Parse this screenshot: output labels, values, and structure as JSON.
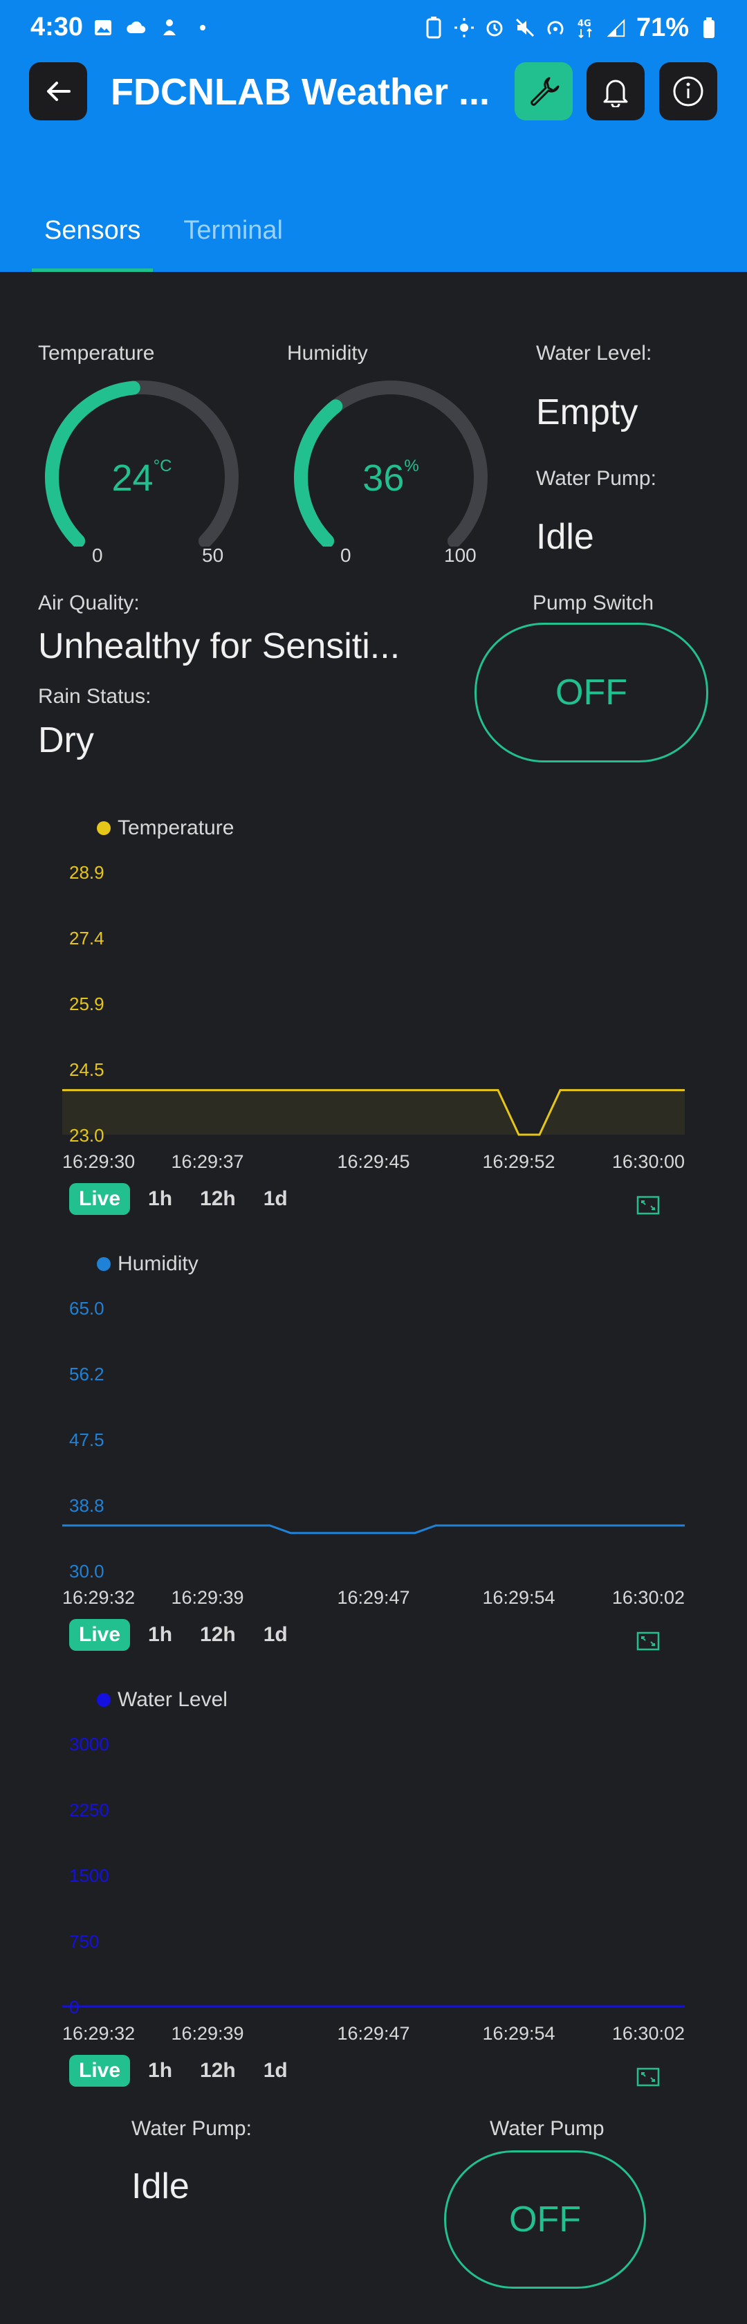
{
  "status_bar": {
    "time": "4:30",
    "battery": "71%"
  },
  "app_bar": {
    "title": "FDCNLAB Weather ..."
  },
  "tabs": [
    {
      "label": "Sensors",
      "active": true
    },
    {
      "label": "Terminal",
      "active": false
    }
  ],
  "widgets": {
    "temperature": {
      "label": "Temperature",
      "value": "24",
      "unit": "°C",
      "min": "0",
      "max": "50",
      "fill": 0.48
    },
    "humidity": {
      "label": "Humidity",
      "value": "36",
      "unit": "%",
      "min": "0",
      "max": "100",
      "fill": 0.36
    },
    "water_level": {
      "label": "Water Level:",
      "value": "Empty"
    },
    "water_pump": {
      "label": "Water Pump:",
      "value": "Idle"
    },
    "air_quality": {
      "label": "Air Quality:",
      "value": "Unhealthy for Sensiti..."
    },
    "rain_status": {
      "label": "Rain Status:",
      "value": "Dry"
    },
    "pump_switch": {
      "label": "Pump Switch",
      "value": "OFF"
    },
    "water_pump_bottom": {
      "label": "Water Pump:",
      "value": "Idle"
    },
    "water_pump_switch": {
      "label": "Water Pump",
      "value": "OFF"
    }
  },
  "range_buttons": [
    "Live",
    "1h",
    "12h",
    "1d"
  ],
  "colors": {
    "accent": "#23c08f",
    "header": "#0a86ee",
    "background": "#1e1f23",
    "temperature_series": "#e6c619",
    "humidity_series": "#1f82d6",
    "water_series": "#1410e0"
  },
  "chart_data": [
    {
      "type": "area",
      "series": [
        {
          "name": "Temperature",
          "x": [
            "16:29:30",
            "16:29:37",
            "16:29:45",
            "16:29:50",
            "16:29:51",
            "16:29:52",
            "16:29:53",
            "16:29:54",
            "16:30:00"
          ],
          "values": [
            24,
            24,
            24,
            24,
            24,
            23,
            23,
            24,
            24
          ]
        }
      ],
      "y_ticks": [
        "28.9",
        "27.4",
        "25.9",
        "24.5",
        "23.0"
      ],
      "ylim": [
        23.0,
        28.9
      ],
      "x_ticks": [
        "16:29:30",
        "16:29:37",
        "16:29:45",
        "16:29:52",
        "16:30:00"
      ]
    },
    {
      "type": "line",
      "series": [
        {
          "name": "Humidity",
          "x": [
            "16:29:32",
            "16:29:39",
            "16:29:42",
            "16:29:43",
            "16:29:49",
            "16:29:50",
            "16:30:02"
          ],
          "values": [
            36,
            36,
            36,
            35,
            35,
            36,
            36
          ]
        }
      ],
      "y_ticks": [
        "65.0",
        "56.2",
        "47.5",
        "38.8",
        "30.0"
      ],
      "ylim": [
        30.0,
        65.0
      ],
      "x_ticks": [
        "16:29:32",
        "16:29:39",
        "16:29:47",
        "16:29:54",
        "16:30:02"
      ]
    },
    {
      "type": "line",
      "series": [
        {
          "name": "Water Level",
          "x": [
            "16:29:32",
            "16:30:02"
          ],
          "values": [
            0,
            0
          ]
        }
      ],
      "y_ticks": [
        "3000",
        "2250",
        "1500",
        "750",
        "0"
      ],
      "ylim": [
        0,
        3000
      ],
      "x_ticks": [
        "16:29:32",
        "16:29:39",
        "16:29:47",
        "16:29:54",
        "16:30:02"
      ]
    }
  ]
}
